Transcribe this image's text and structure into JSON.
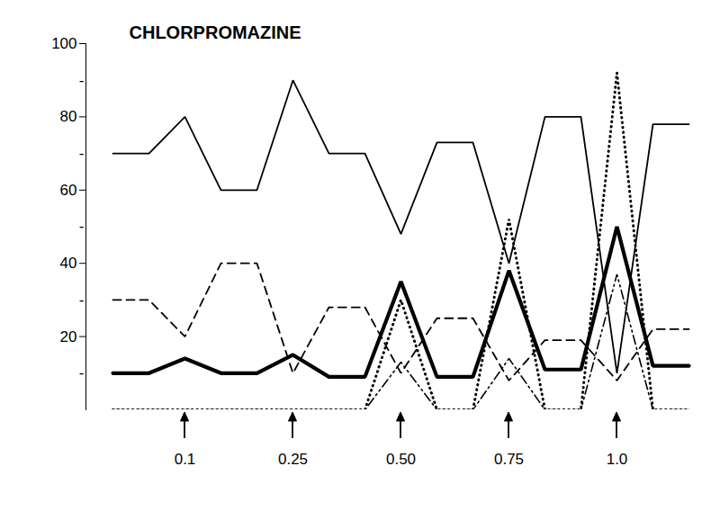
{
  "chart_data": {
    "type": "line",
    "title": "CHLORPROMAZINE",
    "categories": [
      null,
      null,
      "0.1",
      null,
      null,
      "0.25",
      null,
      null,
      "0.50",
      null,
      null,
      "0.75",
      null,
      null,
      "1.0",
      null,
      null
    ],
    "series": [
      {
        "color": "#000000",
        "line_style": "solid",
        "values": [
          70,
          70,
          80,
          60,
          60,
          90,
          70,
          70,
          48,
          73,
          73,
          40,
          80,
          80,
          10,
          78,
          78
        ]
      },
      {
        "color": "#000000",
        "line_style": "dashed",
        "values": [
          30,
          30,
          20,
          40,
          40,
          10,
          28,
          28,
          10,
          25,
          25,
          8,
          19,
          19,
          8,
          22,
          22
        ]
      },
      {
        "color": "#000000",
        "line_style": "thick",
        "values": [
          10,
          10,
          14,
          10,
          10,
          15,
          9,
          9,
          35,
          9,
          9,
          38,
          11,
          11,
          50,
          12,
          12
        ]
      },
      {
        "color": "#000000",
        "line_style": "dotted",
        "values": [
          0,
          0,
          0,
          0,
          0,
          0,
          0,
          0,
          30,
          0,
          0,
          52,
          0,
          0,
          92,
          0,
          0
        ]
      },
      {
        "color": "#000000",
        "line_style": "dashdot",
        "values": [
          0,
          0,
          0,
          0,
          0,
          0,
          0,
          0,
          13,
          0,
          0,
          14,
          0,
          0,
          37,
          0,
          0
        ]
      }
    ],
    "ylim": [
      0,
      100
    ],
    "yticks": [
      {
        "value": 10,
        "label": "-"
      },
      20,
      {
        "value": 30,
        "label": "-"
      },
      40,
      {
        "value": 50,
        "label": "-"
      },
      60,
      {
        "value": 70,
        "label": "-"
      },
      80,
      {
        "value": 90,
        "label": "-"
      },
      100
    ],
    "grid": false
  }
}
